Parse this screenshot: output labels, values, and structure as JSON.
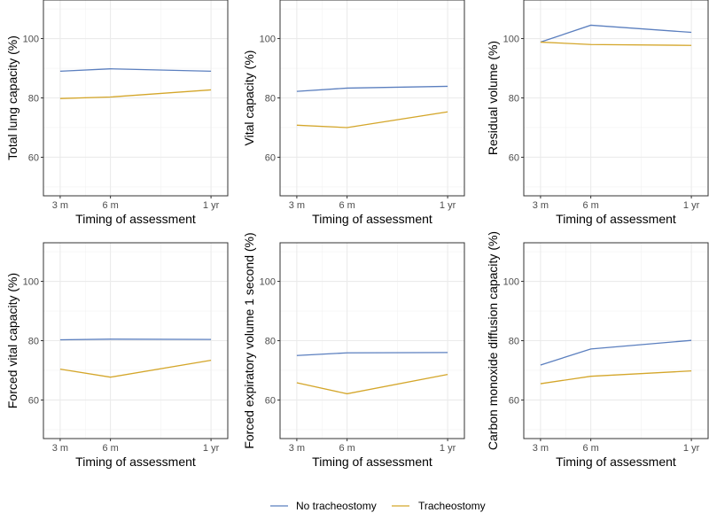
{
  "chart_data": [
    {
      "type": "line",
      "ylabel": "Total lung capacity (%)",
      "xlabel": "Timing of assessment"
    },
    {
      "type": "line",
      "ylabel": "Vital capacity (%)",
      "xlabel": "Timing of assessment"
    },
    {
      "type": "line",
      "ylabel": "Residual volume (%)",
      "xlabel": "Timing of assessment"
    },
    {
      "type": "line",
      "ylabel": "Forced vital capacity (%)",
      "xlabel": "Timing of assessment"
    },
    {
      "type": "line",
      "ylabel": "Forced expiratory volume 1 second (%)",
      "xlabel": "Timing of assessment"
    },
    {
      "type": "line",
      "ylabel": "Carbon monoxide diffusion capacity (%)",
      "xlabel": "Timing of assessment"
    }
  ],
  "shared": {
    "x_months": [
      3,
      6,
      12
    ],
    "x_tick_labels": [
      "3 m",
      "6 m",
      "1 yr"
    ],
    "xlim": [
      2,
      13
    ],
    "ylim": [
      47,
      113
    ],
    "y_ticks": [
      60,
      80,
      100
    ],
    "grid": true,
    "legend_position": "bottom",
    "series_names": [
      "No tracheostomy",
      "Tracheostomy"
    ],
    "colors": [
      "#5b7fbf",
      "#d4a62a"
    ]
  },
  "values": [
    [
      [
        89.0,
        89.8,
        89.0
      ],
      [
        79.8,
        80.3,
        82.7
      ]
    ],
    [
      [
        82.2,
        83.3,
        83.9
      ],
      [
        70.8,
        70.0,
        75.3
      ]
    ],
    [
      [
        98.8,
        104.5,
        102.1
      ],
      [
        98.8,
        98.0,
        97.7
      ]
    ],
    [
      [
        80.3,
        80.5,
        80.4
      ],
      [
        70.4,
        67.7,
        73.4
      ]
    ],
    [
      [
        75.0,
        75.9,
        76.0
      ],
      [
        65.8,
        62.1,
        68.6
      ]
    ],
    [
      [
        71.8,
        77.2,
        80.1
      ],
      [
        65.5,
        68.0,
        69.8
      ]
    ]
  ],
  "legend": {
    "items": [
      "No tracheostomy",
      "Tracheostomy"
    ]
  }
}
